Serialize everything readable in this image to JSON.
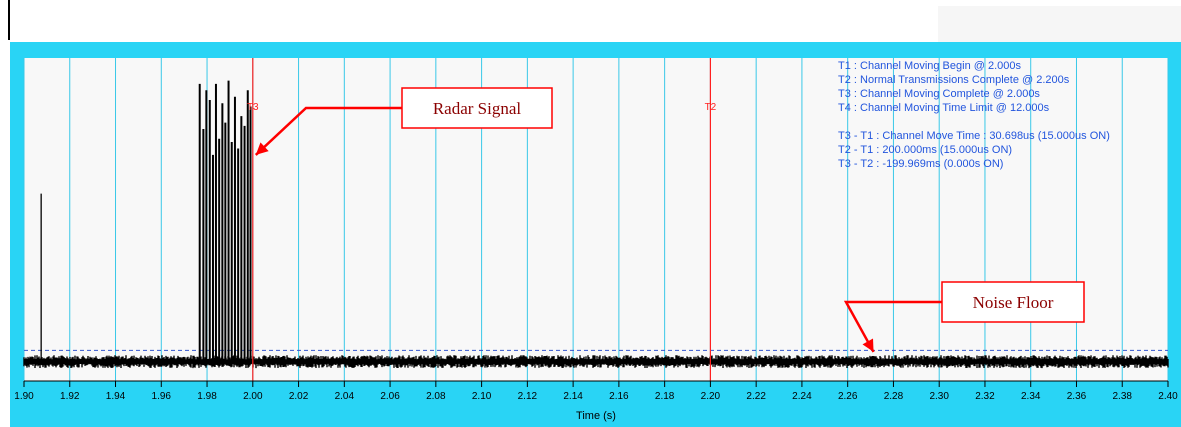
{
  "chart_data": {
    "type": "line",
    "title": "",
    "xlabel": "Time (s)",
    "ylabel": "",
    "xlim": [
      1.9,
      2.4
    ],
    "x_ticks": [
      1.9,
      1.92,
      1.94,
      1.96,
      1.98,
      2.0,
      2.02,
      2.04,
      2.06,
      2.08,
      2.1,
      2.12,
      2.14,
      2.16,
      2.18,
      2.2,
      2.22,
      2.24,
      2.26,
      2.28,
      2.3,
      2.32,
      2.34,
      2.36,
      2.38,
      2.4
    ],
    "x_tick_labels": [
      "1.90",
      "1.92",
      "1.94",
      "1.96",
      "1.98",
      "2.00",
      "2.02",
      "2.04",
      "2.06",
      "2.08",
      "2.10",
      "2.12",
      "2.14",
      "2.16",
      "2.18",
      "2.20",
      "2.22",
      "2.24",
      "2.26",
      "2.28",
      "2.30",
      "2.32",
      "2.34",
      "2.36",
      "2.38",
      "2.40"
    ],
    "grid": "vertical",
    "colors": {
      "frame": "#29d4f5",
      "plot_bg": "#f8f8f8",
      "grid": "#39c8e8",
      "marker_line": "#ff2020",
      "signal": "#000000",
      "noise_ref": "#3355cc",
      "info_text": "#2255dd",
      "callout_border": "#ff0000",
      "callout_text": "#8b0000"
    },
    "signal": {
      "noise_floor_level": 0.06,
      "noise_amplitude": 0.02,
      "spike_times": [
        1.9075
      ],
      "spike_levels": [
        0.58
      ],
      "burst_times": [
        1.9768,
        1.9784,
        1.9797,
        1.9812,
        1.9826,
        1.9839,
        1.9853,
        1.9867,
        1.988,
        1.9894,
        1.9908,
        1.9922,
        1.9936,
        1.995,
        1.9964,
        1.9978,
        1.999
      ],
      "burst_levels": [
        0.92,
        0.78,
        0.9,
        0.87,
        0.7,
        0.92,
        0.75,
        0.86,
        0.8,
        0.93,
        0.74,
        0.88,
        0.72,
        0.82,
        0.79,
        0.9,
        0.85
      ]
    },
    "noise_reference_level": 0.095,
    "markers": [
      {
        "label": "T3",
        "x": 2.0
      },
      {
        "label": "T2",
        "x": 2.2
      }
    ],
    "info_lines": [
      "T1 : Channel Moving Begin @ 2.000s",
      "T2 : Normal Transmissions Complete @ 2.200s",
      "T3 : Channel Moving Complete @ 2.000s",
      "T4 : Channel Moving Time Limit @ 12.000s",
      "",
      "T3 - T1 : Channel Move Time : 30.698us (15.000us ON)",
      "T2 - T1 : 200.000ms (15.000us ON)",
      "T3 - T2 : -199.969ms (0.000s ON)"
    ],
    "callouts": [
      {
        "label": "Radar Signal",
        "points_to_x": 2.0,
        "points_to_level": 0.7
      },
      {
        "label": "Noise Floor",
        "points_to_x": 2.27,
        "points_to_level": 0.09
      }
    ]
  }
}
